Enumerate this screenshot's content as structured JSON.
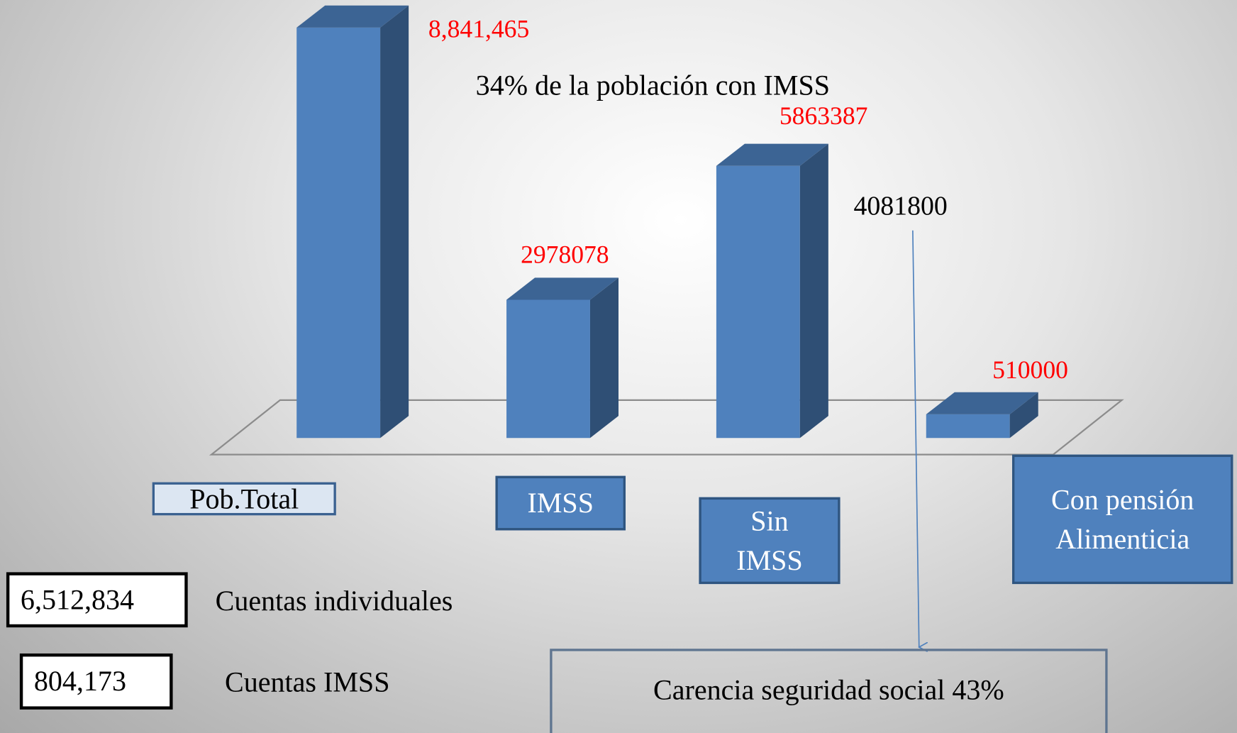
{
  "chart_data": {
    "type": "bar3d",
    "categories": [
      "Pob.Total",
      "IMSS",
      "Sin IMSS",
      "Con pensión Alimenticia"
    ],
    "values": [
      8841465,
      2978078,
      5863387,
      510000
    ],
    "value_labels": [
      "8,841,465",
      "2978078",
      "5863387",
      "510000"
    ],
    "color": "#4f81bd",
    "label_color": "#ff0000",
    "annotations": [
      "34% de la población con IMSS",
      "4081800",
      "Carencia seguridad social 43%"
    ],
    "boxes": [
      {
        "value": "6,512,834",
        "label": "Cuentas individuales"
      },
      {
        "value": "804,173",
        "label": "Cuentas IMSS"
      }
    ]
  }
}
